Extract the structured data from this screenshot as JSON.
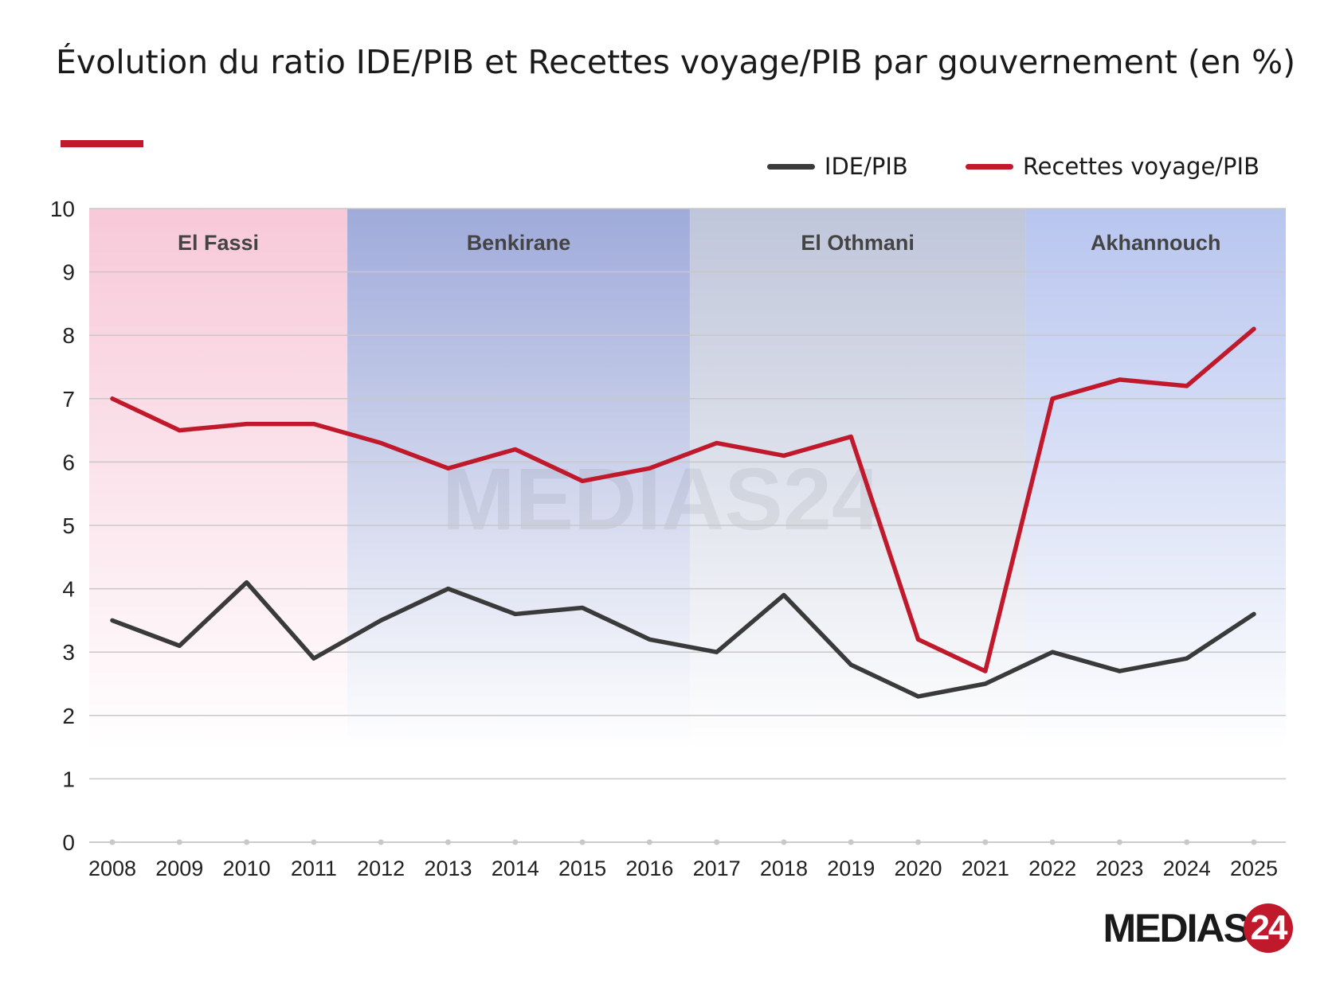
{
  "chart_data": {
    "type": "line",
    "title": "Évolution du ratio IDE/PIB et Recettes voyage/PIB par gouvernement (en %)",
    "x": [
      2008,
      2009,
      2010,
      2011,
      2012,
      2013,
      2014,
      2015,
      2016,
      2017,
      2018,
      2019,
      2020,
      2021,
      2022,
      2023,
      2024,
      2025
    ],
    "series": [
      {
        "name": "IDE/PIB",
        "color": "#3a3a3a",
        "values": [
          3.5,
          3.1,
          4.1,
          2.9,
          3.5,
          4.0,
          3.6,
          3.7,
          3.2,
          3.0,
          3.9,
          2.8,
          2.3,
          2.5,
          3.0,
          2.7,
          2.9,
          3.6
        ]
      },
      {
        "name": "Recettes voyage/PIB",
        "color": "#c0192c",
        "values": [
          7.0,
          6.5,
          6.6,
          6.6,
          6.3,
          5.9,
          6.2,
          5.7,
          5.9,
          6.3,
          6.1,
          6.4,
          3.2,
          2.7,
          7.0,
          7.3,
          7.2,
          8.1
        ]
      }
    ],
    "ylim": [
      0,
      10
    ],
    "yticks": [
      0,
      1,
      2,
      3,
      4,
      5,
      6,
      7,
      8,
      9,
      10
    ],
    "grid": true,
    "legend_position": "top-right",
    "periods": [
      {
        "label": "El Fassi",
        "start": 2008,
        "end": 2011.5,
        "color": "#f7c6d6"
      },
      {
        "label": "Benkirane",
        "start": 2011.5,
        "end": 2016.6,
        "color": "#9aa6d8"
      },
      {
        "label": "El Othmani",
        "start": 2016.6,
        "end": 2021.6,
        "color": "#bcc3d8"
      },
      {
        "label": "Akhannouch",
        "start": 2021.6,
        "end": 2025.5,
        "color": "#b4c2ee"
      }
    ]
  },
  "watermark": "MEDIAS24",
  "logo": {
    "text": "MEDIAS",
    "number": "24"
  }
}
